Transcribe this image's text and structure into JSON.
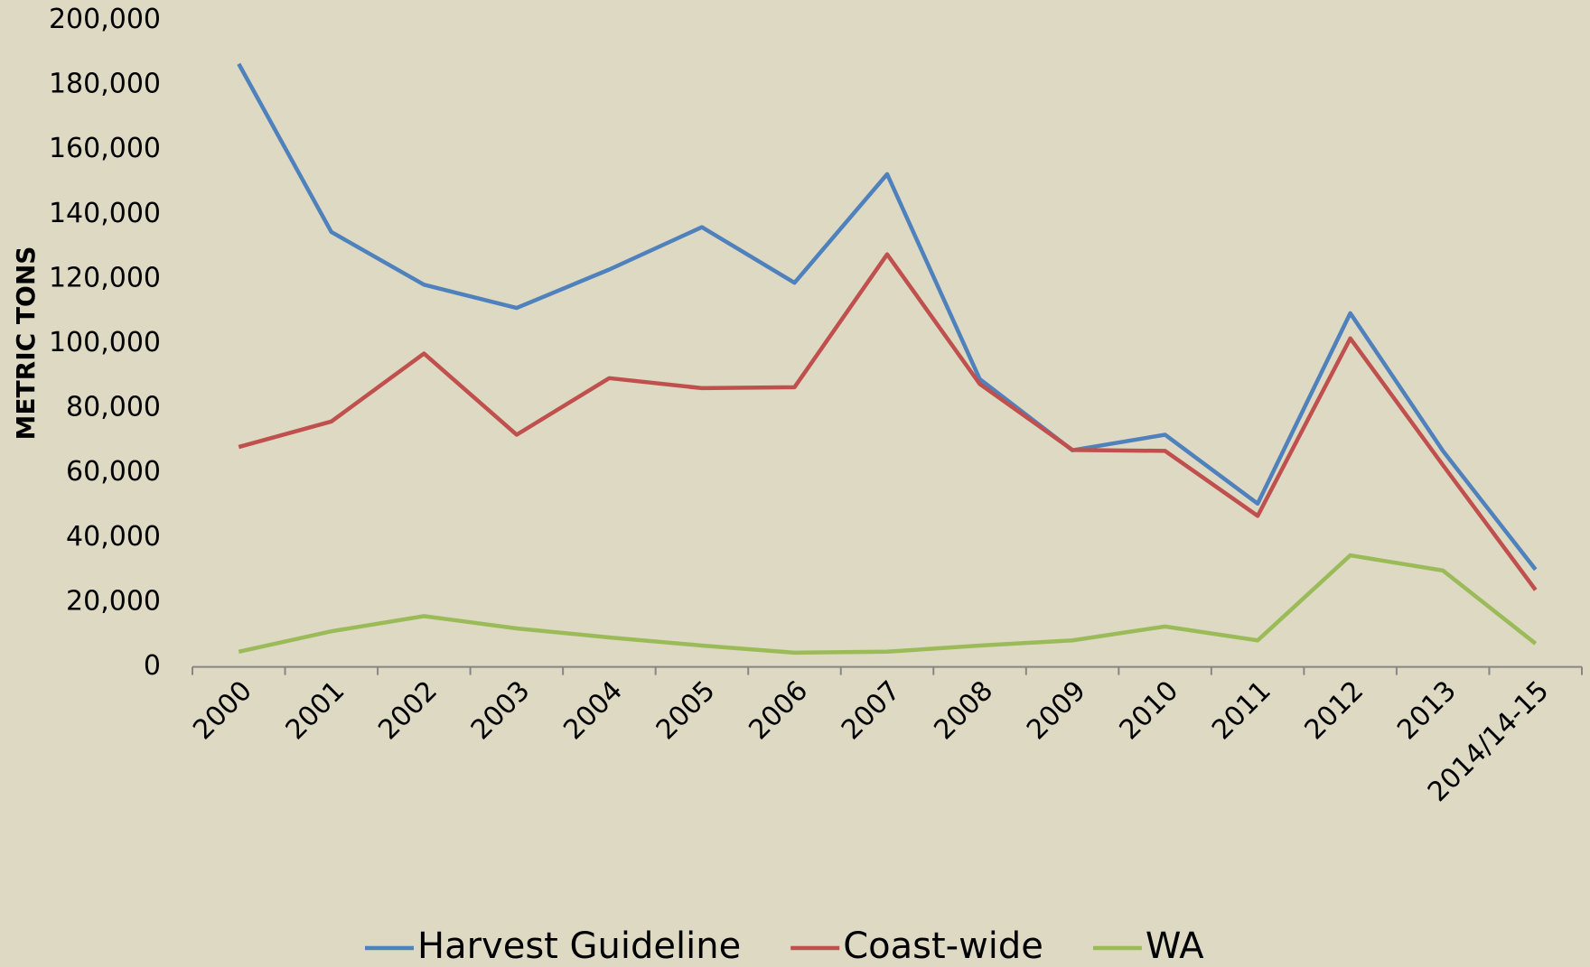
{
  "chart_data": {
    "type": "line",
    "y_label": "METRIC TONS",
    "categories": [
      "2000",
      "2001",
      "2002",
      "2003",
      "2004",
      "2005",
      "2006",
      "2007",
      "2008",
      "2009",
      "2010",
      "2011",
      "2012",
      "2013",
      "2014/14-15"
    ],
    "series": [
      {
        "name": "Harvest Guideline",
        "color": "#4f81bd",
        "values": [
          186500,
          134500,
          118200,
          111000,
          122900,
          136000,
          118800,
          152400,
          89000,
          67000,
          71800,
          50500,
          109400,
          66800,
          30100
        ]
      },
      {
        "name": "Coast-wide",
        "color": "#c0504d",
        "values": [
          68000,
          75900,
          96900,
          71800,
          89300,
          86200,
          86500,
          127600,
          87500,
          67100,
          66800,
          46700,
          101600,
          62400,
          23800
        ]
      },
      {
        "name": "WA",
        "color": "#9bbb59",
        "values": [
          4700,
          11000,
          15700,
          11900,
          9100,
          6600,
          4400,
          4700,
          6600,
          8200,
          12500,
          8200,
          34500,
          29800,
          7200
        ]
      }
    ],
    "ylim": [
      0,
      200000
    ],
    "yticks": [
      0,
      {
        "value": 20000,
        "label": "20,000"
      },
      {
        "value": 40000,
        "label": "40,000"
      },
      {
        "value": 60000,
        "label": "60,000"
      },
      {
        "value": 80000,
        "label": "80,000"
      },
      {
        "value": 100000,
        "label": "100,000"
      },
      {
        "value": 120000,
        "label": "120,000"
      },
      {
        "value": 140000,
        "label": "140,000"
      },
      {
        "value": 160000,
        "label": "160,000"
      },
      {
        "value": 180000,
        "label": "180,000"
      },
      {
        "value": 200000,
        "label": "200,000"
      }
    ],
    "legend": "bottom"
  }
}
